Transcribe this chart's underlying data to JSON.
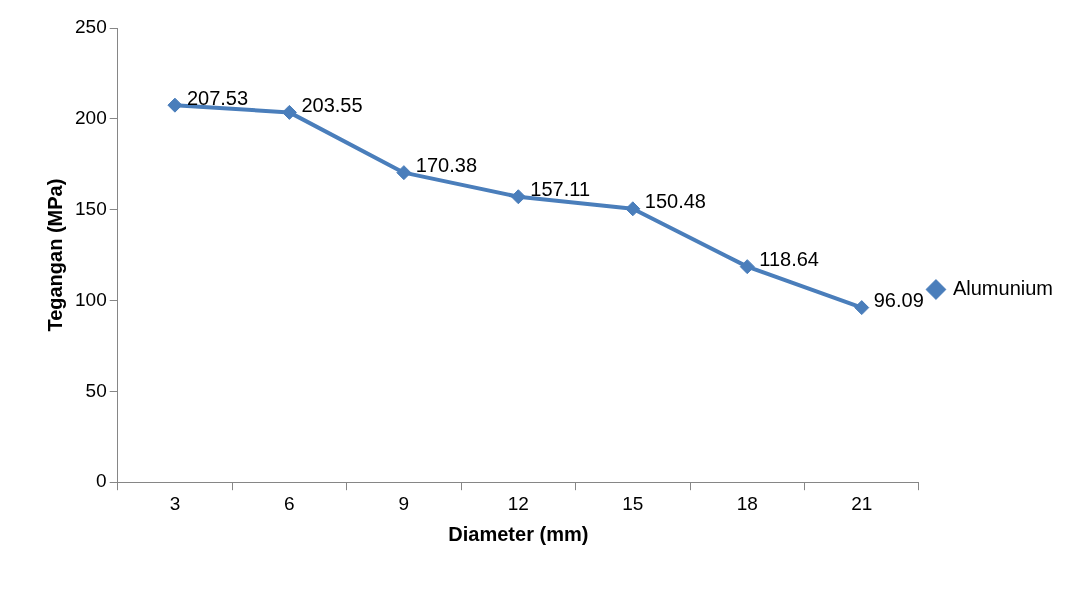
{
  "chart_data": {
    "type": "line",
    "xlabel": "Diameter (mm)",
    "ylabel": "Tegangan (MPa)",
    "categories": [
      "3",
      "6",
      "9",
      "12",
      "15",
      "18",
      "21"
    ],
    "series": [
      {
        "name": "Alumunium",
        "color": "#4a7ebb",
        "values": [
          207.53,
          203.55,
          170.38,
          157.11,
          150.48,
          118.64,
          96.09
        ]
      }
    ],
    "ylim": [
      0,
      250
    ],
    "yticks": [
      0,
      50,
      100,
      150,
      200,
      250
    ],
    "grid": false,
    "legend": "right",
    "marker": "diamond",
    "line_style": "solid",
    "data_labels": true
  }
}
